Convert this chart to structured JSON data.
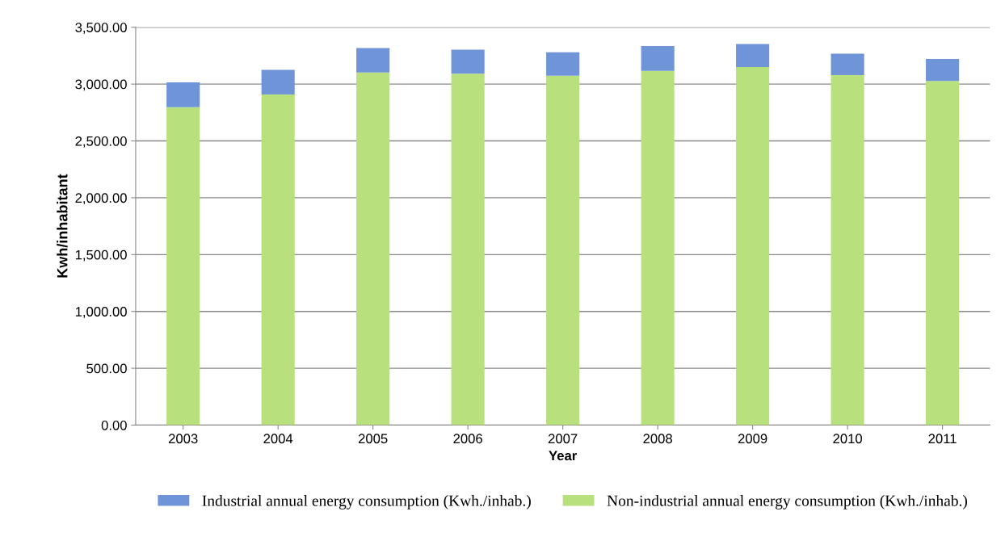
{
  "chart_data": {
    "type": "bar",
    "stacked": true,
    "xlabel": "Year",
    "ylabel": "Kwh/inhabitant",
    "categories": [
      "2003",
      "2004",
      "2005",
      "2006",
      "2007",
      "2008",
      "2009",
      "2010",
      "2011"
    ],
    "series": [
      {
        "name": "Non-industrial annual energy consumption (Kwh./inhab.)",
        "color": "#b8e07c",
        "values": [
          2796,
          2908,
          3103,
          3092,
          3073,
          3116,
          3151,
          3080,
          3027
        ]
      },
      {
        "name": "Industrial annual energy consumption (Kwh./inhab.)",
        "color": "#6f94d8",
        "values": [
          220,
          218,
          214,
          211,
          207,
          219,
          201,
          188,
          195
        ]
      }
    ],
    "ylim": [
      0,
      3500
    ],
    "yticks": [
      {
        "value": 0,
        "label": "0.00"
      },
      {
        "value": 500,
        "label": "500.00"
      },
      {
        "value": 1000,
        "label": "1,000.00"
      },
      {
        "value": 1500,
        "label": "1,500.00"
      },
      {
        "value": 2000,
        "label": "2,000.00"
      },
      {
        "value": 2500,
        "label": "2,500.00"
      },
      {
        "value": 3000,
        "label": "3,000.00"
      },
      {
        "value": 3500,
        "label": "3,500.00"
      }
    ],
    "grid": "y",
    "legend": "bottom"
  }
}
